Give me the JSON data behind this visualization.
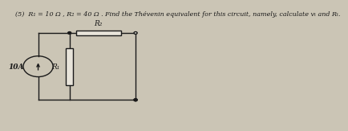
{
  "bg_color": "#cbc5b5",
  "paper_color": "#e8e4da",
  "text_title": "(5)  R₁ = 10 Ω , R₂ = 40 Ω . Find the Thévenin equivalent for this circuit, namely, calculate vₜ and Rₜ.",
  "label_10A": "10A",
  "label_R1": "R₁",
  "label_R2": "R₂",
  "line_color": "#1a1a1a",
  "text_color": "#1a1a1a",
  "title_fontsize": 5.8,
  "label_fontsize": 6.5,
  "circuit_label_fontsize": 6.5
}
